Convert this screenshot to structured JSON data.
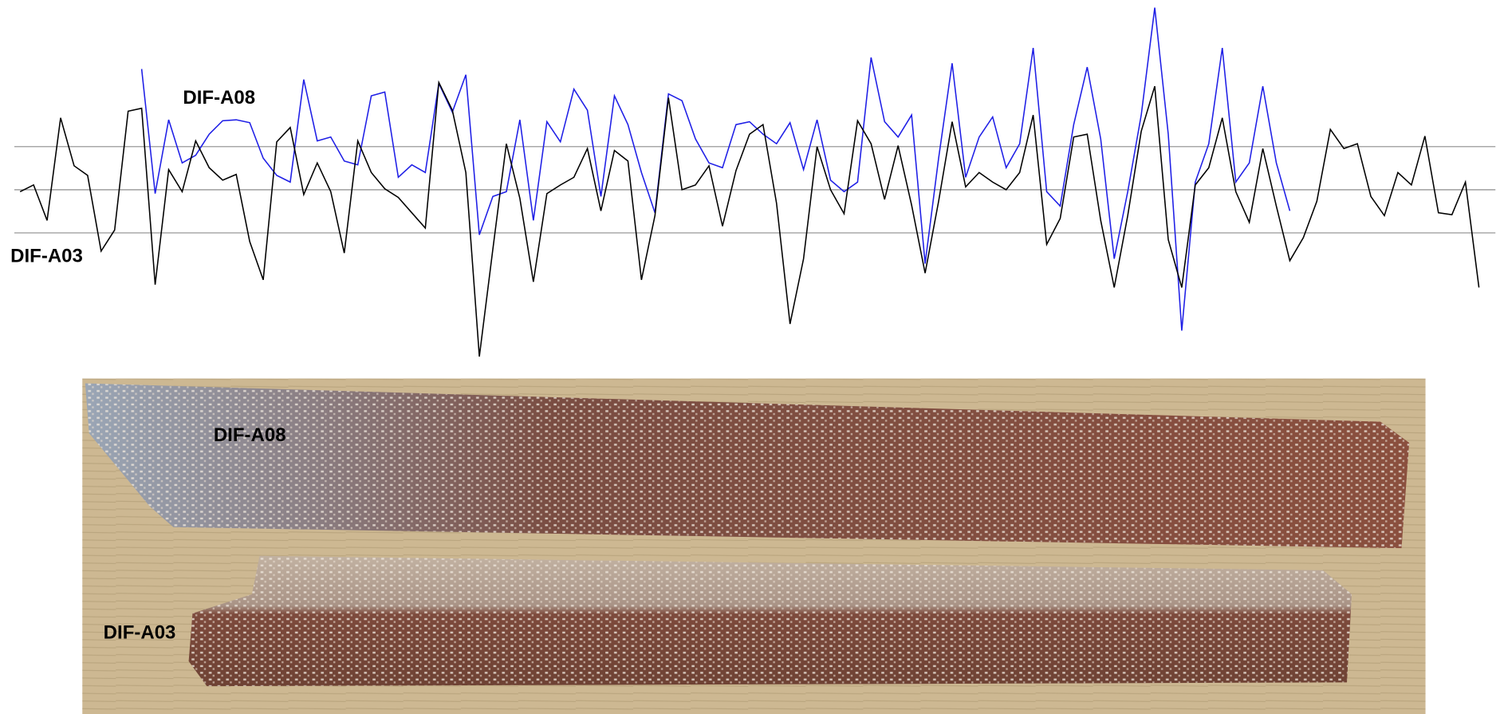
{
  "chart_data": {
    "type": "line",
    "series": [
      {
        "name": "DIF-A08",
        "color": "#1f1fe6",
        "values": [
          null,
          null,
          null,
          null,
          null,
          null,
          null,
          null,
          null,
          126,
          -4,
          73,
          28,
          36,
          58,
          72,
          73,
          70,
          33,
          15,
          8,
          115,
          51,
          55,
          30,
          26,
          98,
          102,
          13,
          26,
          18,
          111,
          81,
          120,
          -47,
          -7,
          -2,
          73,
          -32,
          71,
          50,
          105,
          83,
          -7,
          98,
          68,
          18,
          -24,
          100,
          93,
          53,
          28,
          23,
          68,
          71,
          58,
          48,
          70,
          21,
          73,
          10,
          -2,
          8,
          138,
          71,
          55,
          78,
          -77,
          33,
          132,
          13,
          55,
          76,
          23,
          48,
          148,
          -2,
          -17,
          68,
          128,
          53,
          -72,
          -2,
          78,
          190,
          58,
          -147,
          8,
          48,
          148,
          8,
          28,
          108,
          28,
          -22,
          null,
          null,
          null,
          null,
          null,
          null,
          null,
          null,
          null,
          null,
          null,
          null,
          null,
          null
        ]
      },
      {
        "name": "DIF-A03",
        "color": "#000000",
        "values": [
          -2,
          5,
          -32,
          75,
          25,
          15,
          -64,
          -42,
          82,
          85,
          -99,
          21,
          -2,
          51,
          23,
          10,
          16,
          -54,
          -94,
          50,
          65,
          -5,
          28,
          -2,
          -66,
          51,
          18,
          1,
          -8,
          -24,
          -40,
          112,
          83,
          18,
          -174,
          -62,
          48,
          -9,
          -96,
          -4,
          5,
          13,
          43,
          -22,
          41,
          30,
          -94,
          -27,
          96,
          0,
          5,
          25,
          -38,
          20,
          58,
          68,
          -14,
          -140,
          -72,
          45,
          0,
          -25,
          72,
          48,
          -10,
          46,
          -16,
          -87,
          -12,
          71,
          3,
          18,
          8,
          0,
          18,
          78,
          -57,
          -30,
          55,
          58,
          -32,
          -102,
          -27,
          61,
          108,
          -52,
          -102,
          5,
          23,
          75,
          -2,
          -34,
          43,
          -17,
          -74,
          -50,
          -12,
          63,
          43,
          48,
          -7,
          -27,
          18,
          5,
          56,
          -24,
          -26,
          8,
          -102
        ]
      }
    ],
    "ylim": [
      -185,
      198
    ],
    "yticks": [
      -45,
      0,
      45
    ],
    "grid": true,
    "ytick_labels": false
  }
}
